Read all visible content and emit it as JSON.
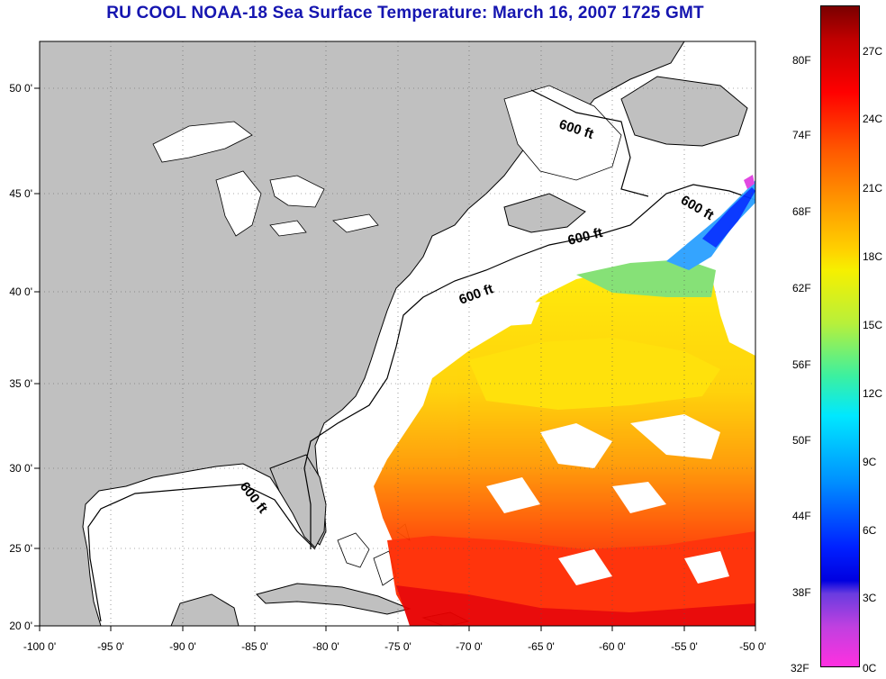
{
  "title": "RU COOL  NOAA-18  Sea Surface Temperature:  March 16, 2007 1725 GMT",
  "map": {
    "lon_labels": [
      "-100 0'",
      "-95 0'",
      "-90 0'",
      "-85 0'",
      "-80 0'",
      "-75 0'",
      "-70 0'",
      "-65 0'",
      "-60 0'",
      "-55 0'",
      "-50 0'"
    ],
    "lat_labels": [
      "50 0'",
      "45 0'",
      "40 0'",
      "35 0'",
      "30 0'",
      "25 0'",
      "20 0'"
    ],
    "lon_range": [
      -100,
      -50
    ],
    "lat_range": [
      20,
      52.5
    ],
    "land_color": "#c0c0c0",
    "contour_labels": [
      "600 ft",
      "600 ft",
      "600 ft",
      "600 ft",
      "600 ft"
    ]
  },
  "colorbar": {
    "fahrenheit": [
      "80F",
      "74F",
      "68F",
      "62F",
      "56F",
      "50F",
      "44F",
      "38F",
      "32F"
    ],
    "celsius": [
      "27C",
      "24C",
      "21C",
      "18C",
      "15C",
      "12C",
      "9C",
      "6C",
      "3C",
      "0C"
    ]
  }
}
